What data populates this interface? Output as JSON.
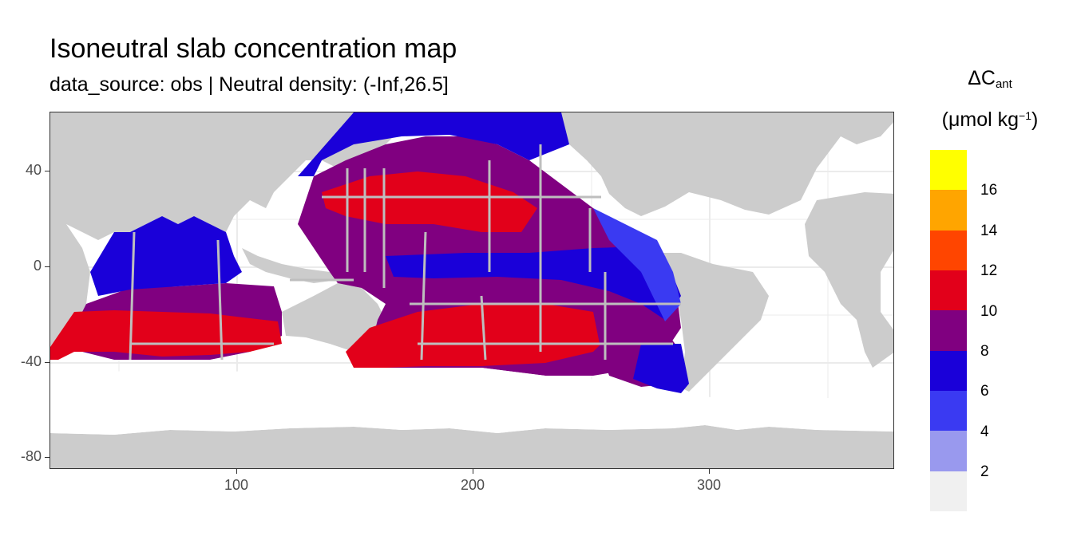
{
  "title": "Isoneutral slab concentration map",
  "subtitle": "data_source: obs | Neutral density: (-Inf,26.5]",
  "legend": {
    "title_main": "ΔC",
    "title_sub": "ant",
    "unit_pre": "(μmol kg",
    "unit_sup": "−1",
    "unit_post": ")",
    "breaks": [
      "2",
      "4",
      "6",
      "8",
      "10",
      "12",
      "14",
      "16"
    ],
    "colors": [
      "#ffff00",
      "#ffa500",
      "#ff4500",
      "#e2001a",
      "#800080",
      "#1a00d9",
      "#3a3af2",
      "#9999ee",
      "#f0f0f0"
    ]
  },
  "axes": {
    "x_ticks": [
      "100",
      "200",
      "300"
    ],
    "y_ticks": [
      "40",
      "0",
      "-40",
      "-80"
    ]
  },
  "colors": {
    "land": "#cccccc",
    "grid": "#ebebeb",
    "track": "#bebebe"
  }
}
